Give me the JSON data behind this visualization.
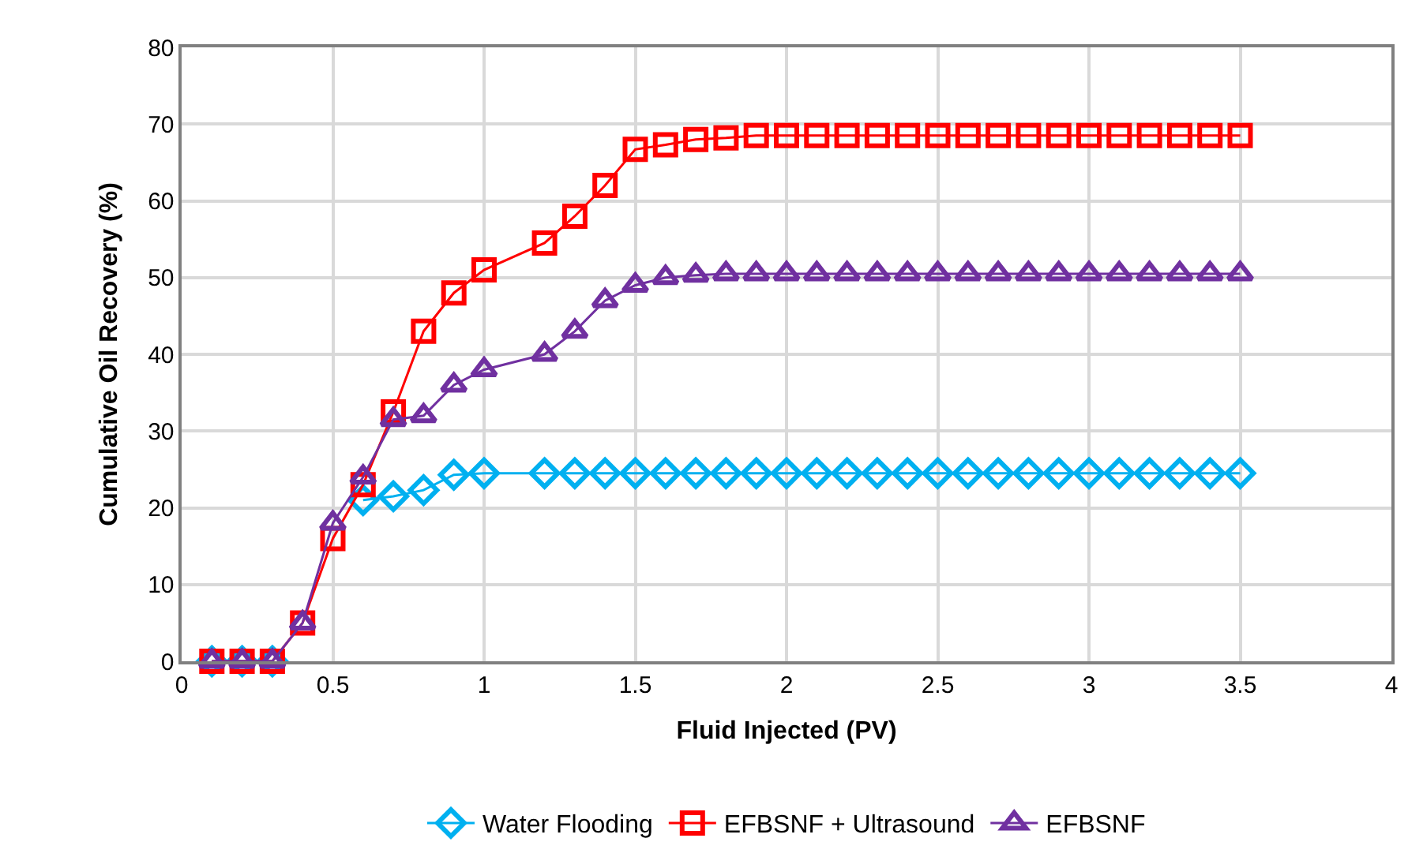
{
  "chart_data": {
    "type": "line",
    "xlabel": "Fluid Injected (PV)",
    "ylabel": "Cumulative Oil Recovery (%)",
    "x": [
      0.1,
      0.2,
      0.3,
      0.4,
      0.5,
      0.6,
      0.7,
      0.8,
      0.9,
      1.0,
      1.2,
      1.3,
      1.4,
      1.5,
      1.6,
      1.7,
      1.8,
      1.9,
      2.0,
      2.1,
      2.2,
      2.3,
      2.4,
      2.5,
      2.6,
      2.7,
      2.8,
      2.9,
      3.0,
      3.1,
      3.2,
      3.3,
      3.4,
      3.5
    ],
    "series": [
      {
        "name": "Water Flooding",
        "color": "#00b0f0",
        "marker": "diamond",
        "values": [
          0,
          0,
          0,
          null,
          null,
          21,
          21.5,
          22.3,
          24.3,
          24.5,
          24.5,
          24.5,
          24.5,
          24.5,
          24.5,
          24.5,
          24.5,
          24.5,
          24.5,
          24.5,
          24.5,
          24.5,
          24.5,
          24.5,
          24.5,
          24.5,
          24.5,
          24.5,
          24.5,
          24.5,
          24.5,
          24.5,
          24.5,
          24.5
        ]
      },
      {
        "name": "EFBSNF + Ultrasound",
        "color": "#ff0000",
        "marker": "square",
        "values": [
          0,
          0,
          0,
          5,
          16,
          23,
          32.5,
          43,
          48,
          51,
          54.5,
          58,
          62,
          66.7,
          67.3,
          68,
          68.2,
          68.5,
          68.5,
          68.5,
          68.5,
          68.5,
          68.5,
          68.5,
          68.5,
          68.5,
          68.5,
          68.5,
          68.5,
          68.5,
          68.5,
          68.5,
          68.5,
          68.5
        ]
      },
      {
        "name": "EFBSNF",
        "color": "#7030a0",
        "marker": "triangle",
        "values": [
          0,
          0,
          0,
          5,
          18,
          24,
          31.5,
          32,
          36,
          38,
          40,
          43,
          47,
          49,
          50,
          50.3,
          50.5,
          50.5,
          50.5,
          50.5,
          50.5,
          50.5,
          50.5,
          50.5,
          50.5,
          50.5,
          50.5,
          50.5,
          50.5,
          50.5,
          50.5,
          50.5,
          50.5,
          50.5
        ]
      }
    ],
    "xlim": [
      0,
      4
    ],
    "xticks": [
      0,
      0.5,
      1,
      1.5,
      2,
      2.5,
      3,
      3.5,
      4
    ],
    "ylim": [
      0,
      80
    ],
    "yticks": [
      0,
      10,
      20,
      30,
      40,
      50,
      60,
      70,
      80
    ],
    "grid": true,
    "legend": "bottom",
    "line_style": "solid"
  }
}
